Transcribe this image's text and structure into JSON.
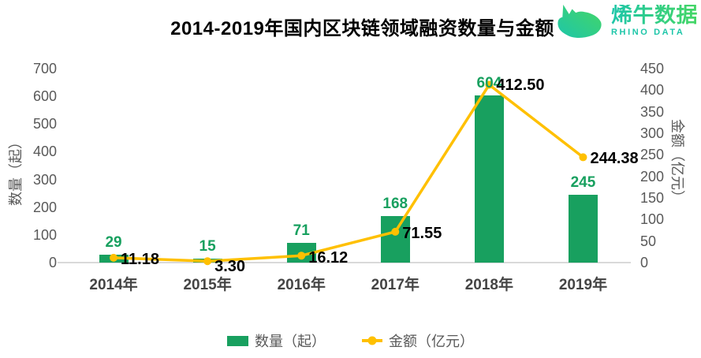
{
  "title": "2014-2019年国内区块链领域融资数量与金额",
  "brand": {
    "name_cn": "烯牛数据",
    "name_en": "RHINO DATA",
    "gradient_start": "#1EC6A9",
    "gradient_end": "#45D665"
  },
  "chart_data": {
    "type": "bar+line",
    "title": "2014-2019年国内区块链领域融资数量与金额",
    "categories": [
      "2014年",
      "2015年",
      "2016年",
      "2017年",
      "2018年",
      "2019年"
    ],
    "series": [
      {
        "name": "数量（起）",
        "type": "bar",
        "axis": "left",
        "values": [
          29,
          15,
          71,
          168,
          604,
          245
        ],
        "labels": [
          "29",
          "15",
          "71",
          "168",
          "604",
          "245"
        ],
        "color": "#18A05F"
      },
      {
        "name": "金额（亿元）",
        "type": "line",
        "axis": "right",
        "values": [
          11.18,
          3.3,
          16.12,
          71.55,
          412.5,
          244.38
        ],
        "labels": [
          "11.18",
          "3.30",
          "16.12",
          "71.55",
          "412.50",
          "244.38"
        ],
        "color": "#FFC000"
      }
    ],
    "left_axis": {
      "title": "数量（起）",
      "min": 0,
      "max": 700,
      "step": 100,
      "ticks": [
        0,
        100,
        200,
        300,
        400,
        500,
        600,
        700
      ]
    },
    "right_axis": {
      "title": "金额（亿元）",
      "min": 0,
      "max": 450,
      "step": 50,
      "ticks": [
        0,
        50,
        100,
        150,
        200,
        250,
        300,
        350,
        400,
        450
      ]
    },
    "legend_position": "bottom",
    "grid": false
  },
  "legend": {
    "bar_label": "数量（起）",
    "line_label": "金额（亿元）"
  },
  "colors": {
    "bar": "#18A05F",
    "bar_value_text": "#18A05F",
    "line": "#FFC000",
    "line_value_text": "#000000",
    "axis_text": "#595959",
    "category_text": "#444444",
    "baseline": "#D9D9D9",
    "title_text": "#000000"
  }
}
